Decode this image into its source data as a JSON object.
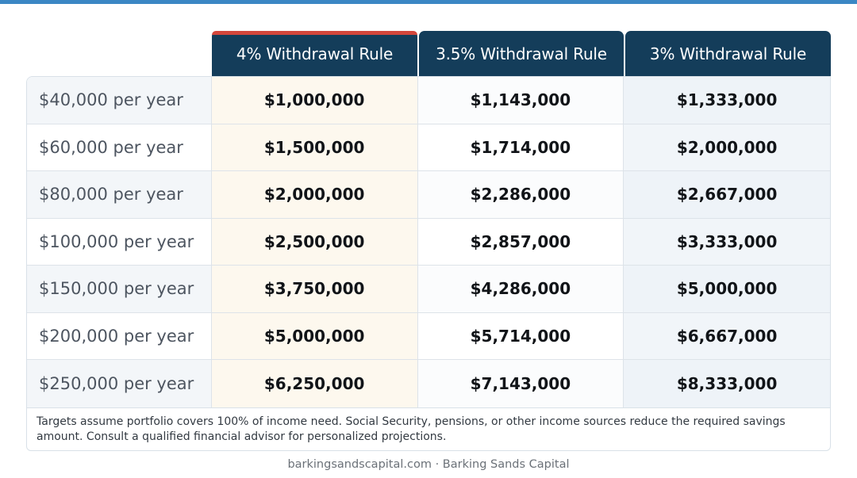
{
  "columns": [
    "4% Withdrawal Rule",
    "3.5% Withdrawal Rule",
    "3% Withdrawal Rule"
  ],
  "rows": [
    {
      "label": "$40,000 per year",
      "values": [
        "$1,000,000",
        "$1,143,000",
        "$1,333,000"
      ]
    },
    {
      "label": "$60,000 per year",
      "values": [
        "$1,500,000",
        "$1,714,000",
        "$2,000,000"
      ]
    },
    {
      "label": "$80,000 per year",
      "values": [
        "$2,000,000",
        "$2,286,000",
        "$2,667,000"
      ]
    },
    {
      "label": "$100,000 per year",
      "values": [
        "$2,500,000",
        "$2,857,000",
        "$3,333,000"
      ]
    },
    {
      "label": "$150,000 per year",
      "values": [
        "$3,750,000",
        "$4,286,000",
        "$5,000,000"
      ]
    },
    {
      "label": "$200,000 per year",
      "values": [
        "$5,000,000",
        "$5,714,000",
        "$6,667,000"
      ]
    },
    {
      "label": "$250,000 per year",
      "values": [
        "$6,250,000",
        "$7,143,000",
        "$8,333,000"
      ]
    }
  ],
  "note": "Targets assume portfolio covers 100% of income need. Social Security, pensions, or other income sources reduce the required savings amount. Consult a qualified financial advisor for personalized projections.",
  "footer": "barkingsandscapital.com · Barking Sands Capital",
  "colors": {
    "header": "#143d5a",
    "accent": "#d4473c",
    "top_bar": "#3b87c4"
  }
}
